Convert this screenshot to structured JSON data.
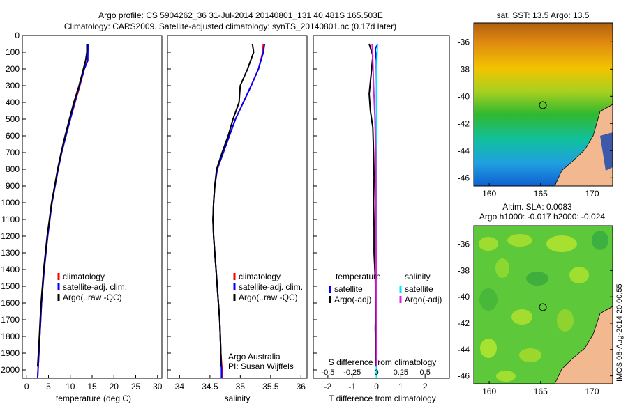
{
  "header": {
    "title_line1": "Argo profile: CS 5904262_36 31-Jul-2014 20140801_131 40.481S 165.503E",
    "title_line2": "Climatology: CARS2009. Satellite-adjusted climatology: synTS_20140801.nc (0.17d later)"
  },
  "depth_ticks": [
    "0",
    "100",
    "200",
    "300",
    "400",
    "500",
    "600",
    "700",
    "800",
    "900",
    "1000",
    "1100",
    "1200",
    "1300",
    "1400",
    "1500",
    "1600",
    "1700",
    "1800",
    "1900",
    "2000"
  ],
  "colors": {
    "clim": "#ff0000",
    "sat": "#0000ff",
    "argo": "#000000",
    "sal_sat": "#00e5ff",
    "sal_argo": "#e020e0"
  },
  "panel1": {
    "xlabel": "temperature (deg C)",
    "xticks": [
      "0",
      "5",
      "10",
      "15",
      "20",
      "25",
      "30"
    ],
    "legend": [
      "climatology",
      "satellite-adj. clim.",
      "Argo(..raw -QC)"
    ]
  },
  "panel2": {
    "xlabel": "salinity",
    "xticks": [
      "34",
      "34.5",
      "35",
      "35.5",
      "36"
    ],
    "legend": [
      "climatology",
      "satellite-adj. clim.",
      "Argo(..raw -QC)"
    ],
    "credit1": "Argo Australia",
    "credit2": "PI: Susan Wijffels"
  },
  "panel3": {
    "xlabel": "T difference from climatology",
    "xlabel_top": "S difference from climatology",
    "xticks": [
      "-2",
      "-1",
      "0",
      "1",
      "2"
    ],
    "sticks": [
      "-0.5",
      "-0.25",
      "0",
      "0.25",
      "0.5"
    ],
    "leg_temp_title": "temperature",
    "leg_sal_title": "salinity",
    "leg_sat": "satellite",
    "leg_argo": "Argo(-adj)"
  },
  "map1": {
    "title": "sat. SST: 13.5 Argo: 13.5",
    "lat_ticks": [
      "-36",
      "-38",
      "-40",
      "-42",
      "-44",
      "-46"
    ],
    "lon_ticks": [
      "160",
      "165",
      "170"
    ]
  },
  "map2": {
    "title1": "Altim. SLA: 0.0083",
    "title2": "Argo h1000: -0.017 h2000: -0.024",
    "lat_ticks": [
      "-36",
      "-38",
      "-40",
      "-42",
      "-44",
      "-46"
    ],
    "lon_ticks": [
      "160",
      "165",
      "170"
    ]
  },
  "side_label": "IMOS 08-Aug-2014 20:00:55",
  "chart_data": [
    {
      "type": "line",
      "xlabel": "temperature (deg C)",
      "ylabel": "",
      "xlim": [
        -1,
        31
      ],
      "ylim": [
        2050,
        0
      ],
      "series": [
        {
          "name": "climatology",
          "points": [
            [
              14,
              50
            ],
            [
              14,
              100
            ],
            [
              13.9,
              150
            ],
            [
              13.2,
              200
            ],
            [
              12.2,
              300
            ],
            [
              11.1,
              400
            ],
            [
              10,
              500
            ],
            [
              9,
              600
            ],
            [
              8,
              700
            ],
            [
              7.2,
              800
            ],
            [
              6.5,
              900
            ],
            [
              5.8,
              1000
            ],
            [
              5.3,
              1100
            ],
            [
              4.8,
              1200
            ],
            [
              4.4,
              1300
            ],
            [
              4,
              1400
            ],
            [
              3.7,
              1500
            ],
            [
              3.4,
              1600
            ],
            [
              3.2,
              1700
            ],
            [
              3,
              1800
            ],
            [
              2.8,
              1900
            ],
            [
              2.6,
              2000
            ],
            [
              2.5,
              2050
            ]
          ]
        },
        {
          "name": "satellite-adj. clim.",
          "points": [
            [
              14.1,
              50
            ],
            [
              14,
              100
            ],
            [
              14,
              150
            ],
            [
              13.2,
              200
            ],
            [
              12.1,
              300
            ],
            [
              11,
              400
            ],
            [
              10,
              500
            ],
            [
              9,
              600
            ],
            [
              8,
              700
            ],
            [
              7.2,
              800
            ],
            [
              6.5,
              900
            ],
            [
              5.8,
              1000
            ],
            [
              5.3,
              1100
            ],
            [
              4.8,
              1200
            ],
            [
              4.4,
              1300
            ],
            [
              4,
              1400
            ],
            [
              3.7,
              1500
            ],
            [
              3.4,
              1600
            ],
            [
              3.2,
              1700
            ],
            [
              3,
              1800
            ],
            [
              2.8,
              1900
            ],
            [
              2.6,
              2000
            ],
            [
              2.5,
              2050
            ]
          ]
        },
        {
          "name": "Argo(..raw -QC)",
          "points": [
            [
              13.8,
              50
            ],
            [
              13.8,
              100
            ],
            [
              13.5,
              150
            ],
            [
              13,
              200
            ],
            [
              12,
              300
            ],
            [
              10.8,
              400
            ],
            [
              9.8,
              500
            ],
            [
              8.8,
              600
            ],
            [
              7.9,
              700
            ],
            [
              7.1,
              800
            ],
            [
              6.4,
              900
            ],
            [
              5.7,
              1000
            ],
            [
              5.2,
              1100
            ],
            [
              4.7,
              1200
            ],
            [
              4.3,
              1300
            ],
            [
              3.9,
              1400
            ],
            [
              3.6,
              1500
            ],
            [
              3.3,
              1600
            ],
            [
              3.1,
              1700
            ],
            [
              2.9,
              1800
            ],
            [
              2.7,
              1900
            ],
            [
              2.5,
              1980
            ]
          ]
        }
      ]
    },
    {
      "type": "line",
      "xlabel": "salinity",
      "ylabel": "",
      "xlim": [
        33.8,
        36.1
      ],
      "ylim": [
        2050,
        0
      ],
      "series": [
        {
          "name": "climatology",
          "points": [
            [
              35.38,
              50
            ],
            [
              35.37,
              100
            ],
            [
              35.3,
              200
            ],
            [
              35.18,
              300
            ],
            [
              35.05,
              400
            ],
            [
              34.92,
              500
            ],
            [
              34.82,
              600
            ],
            [
              34.72,
              700
            ],
            [
              34.62,
              800
            ],
            [
              34.58,
              900
            ],
            [
              34.56,
              1000
            ],
            [
              34.55,
              1100
            ],
            [
              34.56,
              1200
            ],
            [
              34.58,
              1300
            ],
            [
              34.6,
              1400
            ],
            [
              34.62,
              1500
            ],
            [
              34.64,
              1600
            ],
            [
              34.66,
              1700
            ],
            [
              34.67,
              1800
            ],
            [
              34.68,
              1900
            ],
            [
              34.7,
              2000
            ],
            [
              34.7,
              2050
            ]
          ]
        },
        {
          "name": "satellite-adj. clim.",
          "points": [
            [
              35.4,
              50
            ],
            [
              35.38,
              100
            ],
            [
              35.3,
              200
            ],
            [
              35.18,
              300
            ],
            [
              35.05,
              400
            ],
            [
              34.92,
              500
            ],
            [
              34.82,
              600
            ],
            [
              34.72,
              700
            ],
            [
              34.62,
              800
            ],
            [
              34.58,
              900
            ],
            [
              34.56,
              1000
            ],
            [
              34.55,
              1100
            ],
            [
              34.56,
              1200
            ],
            [
              34.58,
              1300
            ],
            [
              34.6,
              1400
            ],
            [
              34.62,
              1500
            ],
            [
              34.64,
              1600
            ],
            [
              34.66,
              1700
            ],
            [
              34.67,
              1800
            ],
            [
              34.68,
              1900
            ],
            [
              34.69,
              2000
            ],
            [
              34.69,
              2050
            ]
          ]
        },
        {
          "name": "Argo(..raw -QC)",
          "points": [
            [
              35.2,
              50
            ],
            [
              35.22,
              100
            ],
            [
              35.12,
              200
            ],
            [
              35,
              300
            ],
            [
              34.98,
              400
            ],
            [
              34.88,
              500
            ],
            [
              34.8,
              600
            ],
            [
              34.7,
              700
            ],
            [
              34.61,
              800
            ],
            [
              34.58,
              900
            ],
            [
              34.56,
              1000
            ],
            [
              34.55,
              1100
            ],
            [
              34.56,
              1200
            ],
            [
              34.58,
              1300
            ],
            [
              34.6,
              1400
            ],
            [
              34.62,
              1500
            ],
            [
              34.64,
              1600
            ],
            [
              34.66,
              1700
            ],
            [
              34.67,
              1800
            ],
            [
              34.68,
              1900
            ],
            [
              34.68,
              1980
            ]
          ]
        }
      ]
    },
    {
      "type": "line",
      "xlabel": "T difference from climatology",
      "ylabel": "",
      "xlim": [
        -2.6,
        3
      ],
      "ylim": [
        2050,
        0
      ],
      "series": [
        {
          "name": "temperature satellite",
          "points": [
            [
              0.05,
              50
            ],
            [
              -0.05,
              80
            ],
            [
              0,
              150
            ],
            [
              0,
              300
            ],
            [
              0,
              500
            ],
            [
              0,
              700
            ],
            [
              0,
              900
            ],
            [
              0,
              1200
            ],
            [
              0,
              1500
            ],
            [
              0,
              1800
            ],
            [
              0,
              1900
            ]
          ]
        },
        {
          "name": "temperature Argo(-adj)",
          "points": [
            [
              -0.3,
              50
            ],
            [
              -0.15,
              120
            ],
            [
              -0.2,
              200
            ],
            [
              -0.3,
              350
            ],
            [
              -0.25,
              450
            ],
            [
              -0.15,
              550
            ],
            [
              -0.12,
              700
            ],
            [
              -0.1,
              850
            ],
            [
              -0.12,
              1000
            ],
            [
              -0.1,
              1150
            ],
            [
              -0.1,
              1300
            ],
            [
              -0.05,
              1450
            ],
            [
              -0.03,
              1600
            ],
            [
              -0.05,
              1750
            ],
            [
              -0.02,
              1980
            ]
          ]
        },
        {
          "name": "salinity satellite",
          "points": [
            [
              0.04,
              50
            ],
            [
              0.02,
              150
            ],
            [
              0,
              300
            ],
            [
              0,
              500
            ],
            [
              0,
              700
            ],
            [
              0,
              900
            ],
            [
              0,
              1200
            ],
            [
              0,
              1500
            ],
            [
              0,
              1800
            ],
            [
              0,
              2050
            ]
          ]
        },
        {
          "name": "salinity Argo(-adj)",
          "points": [
            [
              -0.18,
              50
            ],
            [
              -0.15,
              150
            ],
            [
              -0.12,
              300
            ],
            [
              -0.06,
              500
            ],
            [
              -0.03,
              700
            ],
            [
              -0.02,
              900
            ],
            [
              -0.02,
              1200
            ],
            [
              -0.01,
              1500
            ],
            [
              0,
              1800
            ],
            [
              0,
              1980
            ]
          ]
        }
      ]
    }
  ]
}
